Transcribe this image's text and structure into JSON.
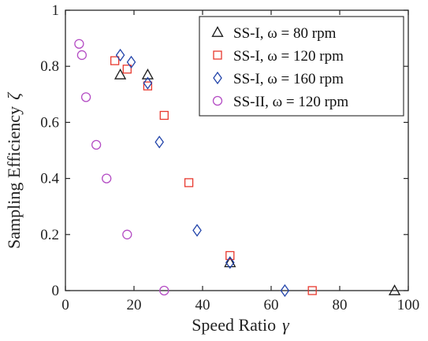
{
  "chart_data": {
    "type": "scatter",
    "xlabel": "Speed Ratio",
    "xlabel_symbol": "γ",
    "ylabel": "Sampling Efficiency",
    "ylabel_symbol": "ζ",
    "xlim": [
      0,
      100
    ],
    "ylim": [
      0,
      1
    ],
    "xticks": [
      "0",
      "20",
      "40",
      "60",
      "80",
      "100"
    ],
    "yticks": [
      "0",
      "0.2",
      "0.4",
      "0.6",
      "0.8",
      "1"
    ],
    "grid": false,
    "legend_position": "top-right",
    "series": [
      {
        "name": "SS-I, ω = 80 rpm",
        "marker": "triangle",
        "color": "#1a1a1a",
        "points": [
          [
            16,
            0.77
          ],
          [
            24,
            0.77
          ],
          [
            48,
            0.1
          ],
          [
            96,
            0.0
          ]
        ]
      },
      {
        "name": "SS-I, ω = 120 rpm",
        "marker": "square",
        "color": "#e8382e",
        "points": [
          [
            14.4,
            0.82
          ],
          [
            18,
            0.79
          ],
          [
            24,
            0.73
          ],
          [
            28.8,
            0.625
          ],
          [
            36,
            0.385
          ],
          [
            48,
            0.125
          ],
          [
            72,
            0.0
          ]
        ]
      },
      {
        "name": "SS-I, ω = 160 rpm",
        "marker": "diamond",
        "color": "#2244aa",
        "points": [
          [
            16,
            0.84
          ],
          [
            19.2,
            0.815
          ],
          [
            24,
            0.74
          ],
          [
            27.4,
            0.53
          ],
          [
            38.4,
            0.215
          ],
          [
            48,
            0.1
          ],
          [
            64,
            0.0
          ]
        ]
      },
      {
        "name": "SS-II, ω = 120 rpm",
        "marker": "circle",
        "color": "#b44cc4",
        "points": [
          [
            4,
            0.88
          ],
          [
            4.8,
            0.84
          ],
          [
            6,
            0.69
          ],
          [
            9,
            0.52
          ],
          [
            12,
            0.4
          ],
          [
            18,
            0.2
          ],
          [
            28.8,
            0.0
          ]
        ]
      }
    ]
  }
}
